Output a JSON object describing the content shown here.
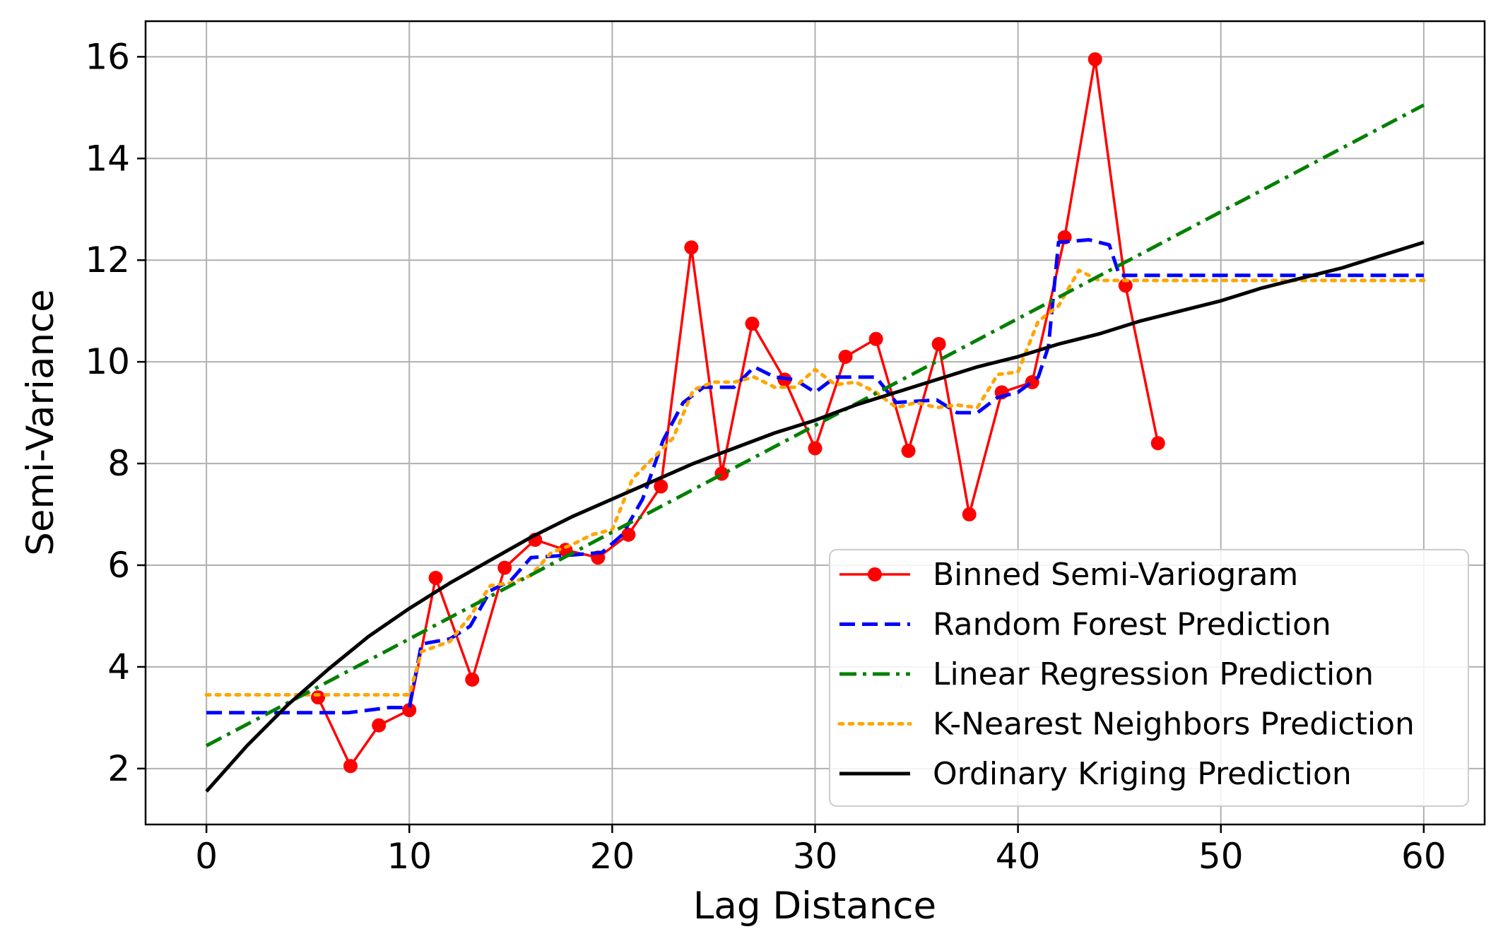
{
  "chart_data": {
    "type": "line",
    "title": "",
    "xlabel": "Lag Distance",
    "ylabel": "Semi-Variance",
    "xlim": [
      -3,
      63
    ],
    "ylim": [
      0.9,
      16.7
    ],
    "xticks": [
      0,
      10,
      20,
      30,
      40,
      50,
      60
    ],
    "yticks": [
      2,
      4,
      6,
      8,
      10,
      12,
      14,
      16
    ],
    "grid": true,
    "legend_position": "lower-right",
    "series": [
      {
        "name": "Binned Semi-Variogram",
        "style": "line-markers",
        "color": "#ff0000",
        "x": [
          5.5,
          7.1,
          8.5,
          10.0,
          11.3,
          13.1,
          14.7,
          16.2,
          17.7,
          19.3,
          20.8,
          22.4,
          23.9,
          25.4,
          26.9,
          28.5,
          30.0,
          31.5,
          33.0,
          34.6,
          36.1,
          37.6,
          39.2,
          40.7,
          42.3,
          43.8,
          45.3,
          46.9
        ],
        "y": [
          3.4,
          2.05,
          2.85,
          3.15,
          5.75,
          3.75,
          5.95,
          6.5,
          6.3,
          6.15,
          6.6,
          7.55,
          12.25,
          7.8,
          10.75,
          9.65,
          8.3,
          10.1,
          10.45,
          8.25,
          10.35,
          7.0,
          9.4,
          9.6,
          12.45,
          15.95,
          11.5,
          8.4
        ]
      },
      {
        "name": "Random Forest Prediction",
        "style": "dashed",
        "color": "#0000ff",
        "x": [
          0,
          5.5,
          7,
          9,
          10,
          10.6,
          12,
          13,
          14,
          15,
          16,
          18,
          19.5,
          20.5,
          21.5,
          22.5,
          23.5,
          24.5,
          26,
          27,
          28,
          29,
          30,
          31,
          33,
          34,
          36,
          37,
          38,
          39,
          40,
          41,
          41.5,
          42,
          43.5,
          44.5,
          45,
          60
        ],
        "y": [
          3.1,
          3.1,
          3.1,
          3.2,
          3.2,
          4.45,
          4.55,
          4.8,
          5.5,
          5.7,
          6.15,
          6.2,
          6.25,
          6.6,
          7.3,
          8.45,
          9.2,
          9.5,
          9.5,
          9.9,
          9.7,
          9.65,
          9.4,
          9.7,
          9.7,
          9.2,
          9.25,
          9.0,
          9.0,
          9.3,
          9.4,
          9.7,
          10.3,
          12.35,
          12.4,
          12.3,
          11.7,
          11.7
        ]
      },
      {
        "name": "Linear Regression Prediction",
        "style": "dash-dot",
        "color": "#008000",
        "x": [
          0,
          60
        ],
        "y": [
          2.45,
          15.05
        ]
      },
      {
        "name": "K-Nearest Neighbors Prediction",
        "style": "dotted",
        "color": "#ffa500",
        "x": [
          0,
          5,
          10,
          10.6,
          12,
          13,
          14,
          15,
          16,
          17,
          18,
          19,
          20,
          21,
          22,
          23,
          24,
          25,
          26,
          27,
          28,
          29,
          30,
          31,
          32,
          33,
          34,
          35,
          36,
          37,
          38,
          39,
          40,
          41,
          42,
          43,
          44,
          45,
          60
        ],
        "y": [
          3.45,
          3.45,
          3.45,
          4.3,
          4.5,
          5.0,
          5.6,
          5.65,
          5.8,
          6.25,
          6.4,
          6.6,
          6.7,
          7.7,
          8.1,
          8.5,
          9.45,
          9.6,
          9.6,
          9.7,
          9.5,
          9.5,
          9.85,
          9.55,
          9.6,
          9.4,
          9.1,
          9.2,
          9.1,
          9.15,
          9.1,
          9.75,
          9.8,
          10.8,
          11.1,
          11.8,
          11.6,
          11.6,
          11.6
        ]
      },
      {
        "name": "Ordinary Kriging Prediction",
        "style": "solid",
        "color": "#000000",
        "x": [
          0,
          2,
          4,
          6,
          8,
          10,
          12,
          14,
          16,
          18,
          20,
          22,
          24,
          26,
          28,
          30,
          32,
          34,
          36,
          38,
          40,
          42,
          44,
          46,
          48,
          50,
          52,
          54,
          56,
          58,
          60
        ],
        "y": [
          1.55,
          2.45,
          3.25,
          3.95,
          4.6,
          5.15,
          5.65,
          6.1,
          6.55,
          6.95,
          7.3,
          7.65,
          8.0,
          8.3,
          8.6,
          8.85,
          9.15,
          9.4,
          9.65,
          9.9,
          10.1,
          10.35,
          10.55,
          10.8,
          11.0,
          11.2,
          11.45,
          11.65,
          11.85,
          12.1,
          12.35
        ]
      }
    ]
  }
}
